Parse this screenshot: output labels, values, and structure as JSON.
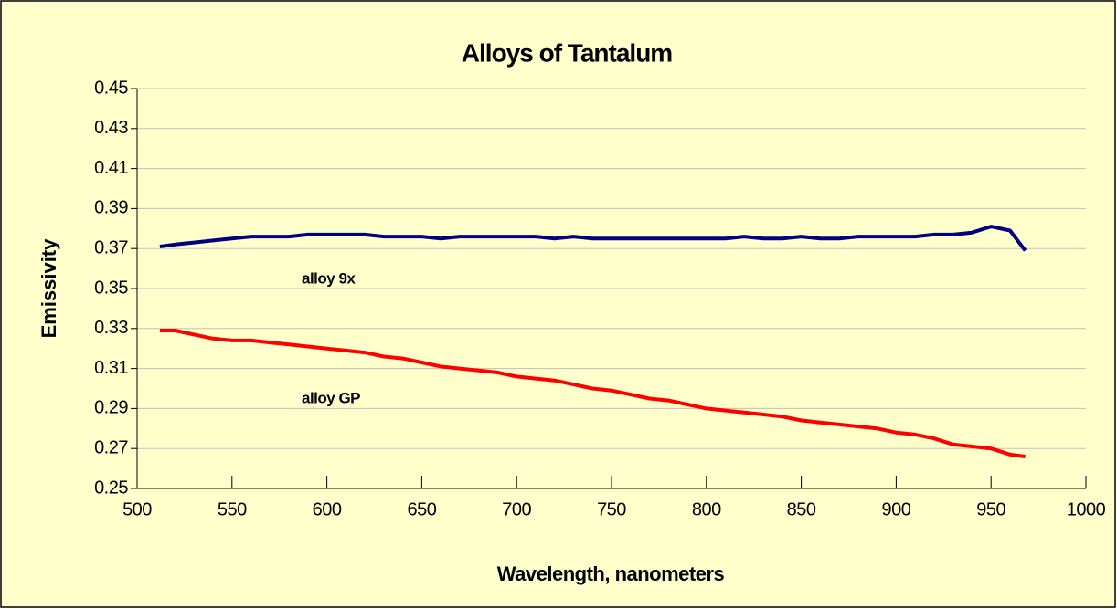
{
  "chart_data": {
    "type": "line",
    "title": "Alloys of Tantalum",
    "x_label": "Wavelength, nanometers",
    "y_label": "Emissivity",
    "annotations": [
      "alloy 9x",
      "alloy GP"
    ],
    "xlim": [
      500,
      1000
    ],
    "xticks": [
      500,
      550,
      600,
      650,
      700,
      750,
      800,
      850,
      900,
      950,
      1000
    ],
    "ylim": [
      0.25,
      0.45
    ],
    "yticks": [
      0.25,
      0.27,
      0.29,
      0.31,
      0.33,
      0.35,
      0.37,
      0.39,
      0.41,
      0.43,
      0.45
    ],
    "grid": true,
    "background": "#ffffcc",
    "x": [
      512,
      520,
      530,
      540,
      550,
      560,
      570,
      580,
      590,
      600,
      610,
      620,
      630,
      640,
      650,
      660,
      670,
      680,
      690,
      700,
      710,
      720,
      730,
      740,
      750,
      760,
      770,
      780,
      790,
      800,
      810,
      820,
      830,
      840,
      850,
      860,
      870,
      880,
      890,
      900,
      910,
      920,
      930,
      940,
      950,
      960,
      968
    ],
    "series": [
      {
        "name": "alloy 9x",
        "color": "#000080",
        "values": [
          0.371,
          0.372,
          0.373,
          0.374,
          0.375,
          0.376,
          0.376,
          0.376,
          0.377,
          0.377,
          0.377,
          0.377,
          0.376,
          0.376,
          0.376,
          0.375,
          0.376,
          0.376,
          0.376,
          0.376,
          0.376,
          0.375,
          0.376,
          0.375,
          0.375,
          0.375,
          0.375,
          0.375,
          0.375,
          0.375,
          0.375,
          0.376,
          0.375,
          0.375,
          0.376,
          0.375,
          0.375,
          0.376,
          0.376,
          0.376,
          0.376,
          0.377,
          0.377,
          0.378,
          0.381,
          0.379,
          0.369
        ]
      },
      {
        "name": "alloy GP",
        "color": "#ff0000",
        "values": [
          0.329,
          0.329,
          0.327,
          0.325,
          0.324,
          0.324,
          0.323,
          0.322,
          0.321,
          0.32,
          0.319,
          0.318,
          0.316,
          0.315,
          0.313,
          0.311,
          0.31,
          0.309,
          0.308,
          0.306,
          0.305,
          0.304,
          0.302,
          0.3,
          0.299,
          0.297,
          0.295,
          0.294,
          0.292,
          0.29,
          0.289,
          0.288,
          0.287,
          0.286,
          0.284,
          0.283,
          0.282,
          0.281,
          0.28,
          0.278,
          0.277,
          0.275,
          0.272,
          0.271,
          0.27,
          0.267,
          0.266
        ]
      }
    ]
  }
}
